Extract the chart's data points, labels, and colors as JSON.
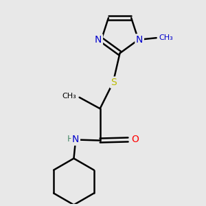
{
  "background_color": "#e8e8e8",
  "bond_color": "#000000",
  "N_color": "#0000cc",
  "O_color": "#ff0000",
  "S_color": "#bbbb00",
  "H_color": "#4a8a6a",
  "figsize": [
    3.0,
    3.0
  ],
  "dpi": 100,
  "xlim": [
    -1.8,
    2.2
  ],
  "ylim": [
    -3.2,
    2.2
  ]
}
